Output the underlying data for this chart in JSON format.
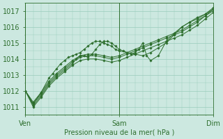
{
  "bg_color": "#cce8e0",
  "grid_color": "#99ccbb",
  "line_color": "#2d6e2d",
  "marker_color": "#2d6e2d",
  "tick_label_color": "#2d6e2d",
  "axis_label_color": "#2d6e2d",
  "ylim": [
    1010.5,
    1017.5
  ],
  "yticks": [
    1011,
    1012,
    1013,
    1014,
    1015,
    1016,
    1017
  ],
  "xtick_positions": [
    0,
    48,
    96
  ],
  "xtick_labels": [
    "Ven",
    "Sam",
    "Dim"
  ],
  "xlabel": "Pression niveau de la mer( hPa )",
  "total_hours": 96,
  "series": [
    {
      "x": [
        0,
        4,
        8,
        12,
        16,
        20,
        24,
        28,
        32,
        36,
        40,
        44,
        48,
        52,
        56,
        60,
        64,
        68,
        72,
        76,
        80,
        84,
        88,
        92,
        96
      ],
      "y": [
        1012.0,
        1011.2,
        1011.8,
        1012.5,
        1013.0,
        1013.4,
        1013.8,
        1014.1,
        1014.2,
        1014.2,
        1014.1,
        1014.0,
        1014.1,
        1014.3,
        1014.5,
        1014.7,
        1014.9,
        1015.1,
        1015.3,
        1015.5,
        1015.7,
        1016.0,
        1016.3,
        1016.7,
        1017.1
      ]
    },
    {
      "x": [
        0,
        4,
        8,
        12,
        16,
        20,
        24,
        28,
        32,
        36,
        40,
        44,
        48,
        52,
        56,
        60,
        64,
        68,
        72,
        76,
        80,
        84,
        88,
        92,
        96
      ],
      "y": [
        1012.0,
        1011.3,
        1011.9,
        1012.6,
        1013.1,
        1013.5,
        1013.9,
        1014.2,
        1014.3,
        1014.3,
        1014.2,
        1014.1,
        1014.2,
        1014.4,
        1014.6,
        1014.8,
        1015.0,
        1015.2,
        1015.4,
        1015.6,
        1015.8,
        1016.1,
        1016.4,
        1016.7,
        1017.0
      ]
    },
    {
      "x": [
        0,
        4,
        8,
        12,
        16,
        20,
        24,
        26,
        28,
        30,
        32,
        34,
        36,
        38,
        40,
        42,
        44,
        46,
        48,
        50,
        52,
        56,
        60,
        64,
        68,
        72,
        76,
        80,
        84,
        88,
        92,
        96
      ],
      "y": [
        1012.0,
        1011.1,
        1011.7,
        1012.4,
        1012.9,
        1013.3,
        1013.7,
        1014.0,
        1014.2,
        1014.2,
        1014.1,
        1014.3,
        1014.6,
        1014.9,
        1015.1,
        1015.1,
        1015.0,
        1014.8,
        1014.6,
        1014.5,
        1014.4,
        1014.3,
        1014.2,
        1014.4,
        1014.7,
        1015.0,
        1015.5,
        1016.0,
        1016.3,
        1016.5,
        1016.8,
        1017.1
      ]
    },
    {
      "x": [
        0,
        4,
        8,
        12,
        14,
        16,
        18,
        20,
        22,
        24,
        26,
        28,
        30,
        32,
        34,
        36,
        38,
        40,
        42,
        44,
        46,
        48,
        52,
        54,
        56,
        58,
        60,
        62,
        64,
        68,
        72,
        76,
        80,
        84,
        88,
        92,
        96
      ],
      "y": [
        1012.0,
        1011.2,
        1011.9,
        1012.8,
        1013.1,
        1013.4,
        1013.7,
        1013.9,
        1014.1,
        1014.2,
        1014.3,
        1014.4,
        1014.6,
        1014.8,
        1015.0,
        1015.1,
        1015.1,
        1015.0,
        1014.9,
        1014.8,
        1014.6,
        1014.5,
        1014.4,
        1014.3,
        1014.4,
        1014.6,
        1015.0,
        1014.2,
        1013.9,
        1014.2,
        1015.1,
        1015.6,
        1016.0,
        1016.3,
        1016.6,
        1016.8,
        1017.2
      ]
    },
    {
      "x": [
        0,
        4,
        8,
        12,
        16,
        20,
        24,
        28,
        32,
        36,
        40,
        44,
        48,
        52,
        56,
        60,
        64,
        68,
        72,
        76,
        80,
        84,
        88,
        92,
        96
      ],
      "y": [
        1012.0,
        1011.0,
        1011.6,
        1012.3,
        1012.8,
        1013.2,
        1013.6,
        1013.9,
        1014.0,
        1014.0,
        1013.9,
        1013.8,
        1013.9,
        1014.1,
        1014.3,
        1014.5,
        1014.7,
        1014.9,
        1015.1,
        1015.3,
        1015.5,
        1015.8,
        1016.1,
        1016.5,
        1016.9
      ]
    }
  ]
}
